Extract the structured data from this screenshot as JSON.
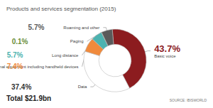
{
  "chart_data": {
    "type": "pie",
    "title": "Products and services segmentation (2015)",
    "categories": [
      "Basic voice",
      "Data",
      "Terminal equipment including handheld devices",
      "Long distance",
      "Paging",
      "Roaming and other"
    ],
    "values": [
      43.7,
      37.4,
      7.4,
      5.7,
      0.1,
      5.7
    ],
    "value_labels": [
      "43.7%",
      "37.4%",
      "7.4%",
      "5.7%",
      "0.1%",
      "5.7%"
    ],
    "colors": [
      "#8c1c1f",
      "#ffffff",
      "#f08a3c",
      "#4cb3b0",
      "#6a8f3a",
      "#5a5a5a"
    ],
    "data_labels": true,
    "annotations": [
      "Total $21.9bn",
      "SOURCE: IBISWORLD"
    ]
  }
}
